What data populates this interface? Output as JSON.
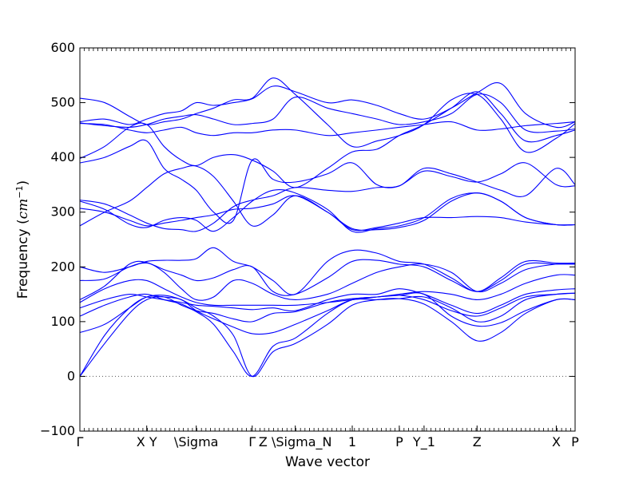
{
  "chart_data": {
    "type": "line",
    "title": "",
    "xlabel": "Wave vector",
    "ylabel": "Frequency ($cm^{-1}$)",
    "ylabel_parts": {
      "main": "Frequency (",
      "unit_cm": "cm",
      "unit_exp": "−1",
      "close": ")"
    },
    "ylim": [
      -100,
      600
    ],
    "yticks": [
      -100,
      0,
      100,
      200,
      300,
      400,
      500,
      600
    ],
    "xlim": [
      0,
      1
    ],
    "high_symmetry_points": [
      {
        "x": 0.0,
        "label": "Γ"
      },
      {
        "x": 0.135,
        "label": "X Y"
      },
      {
        "x": 0.235,
        "label": "\\Sigma"
      },
      {
        "x": 0.348,
        "label": "Γ"
      },
      {
        "x": 0.435,
        "label": "Z \\Sigma_N"
      },
      {
        "x": 0.55,
        "label": "1"
      },
      {
        "x": 0.645,
        "label": "P"
      },
      {
        "x": 0.695,
        "label": "Y_1"
      },
      {
        "x": 0.802,
        "label": "Z"
      },
      {
        "x": 0.962,
        "label": "X"
      },
      {
        "x": 1.0,
        "label": "P"
      }
    ],
    "zero_line": {
      "y": 0,
      "style": "dotted"
    },
    "grid": false,
    "line_color": "#0000ff",
    "series_x": [
      0.0,
      0.05,
      0.1,
      0.135,
      0.17,
      0.205,
      0.235,
      0.27,
      0.31,
      0.348,
      0.39,
      0.435,
      0.5,
      0.55,
      0.6,
      0.645,
      0.695,
      0.75,
      0.802,
      0.85,
      0.9,
      0.962,
      1.0
    ],
    "series": [
      {
        "values": [
          0,
          60,
          115,
          140,
          145,
          130,
          118,
          95,
          45,
          0,
          55,
          70,
          115,
          140,
          145,
          148,
          150,
          110,
          92,
          98,
          120,
          140,
          140
        ]
      },
      {
        "values": [
          0,
          75,
          125,
          145,
          148,
          140,
          125,
          110,
          75,
          0,
          45,
          60,
          95,
          130,
          140,
          142,
          132,
          100,
          65,
          80,
          115,
          140,
          140
        ]
      },
      {
        "values": [
          80,
          95,
          125,
          145,
          145,
          140,
          120,
          105,
          90,
          78,
          80,
          95,
          120,
          140,
          140,
          142,
          145,
          125,
          100,
          110,
          140,
          150,
          152
        ]
      },
      {
        "values": [
          110,
          130,
          145,
          150,
          140,
          132,
          120,
          115,
          105,
          100,
          115,
          118,
          135,
          142,
          145,
          148,
          140,
          120,
          110,
          125,
          145,
          150,
          152
        ]
      },
      {
        "values": [
          125,
          140,
          150,
          145,
          140,
          135,
          130,
          128,
          125,
          122,
          125,
          120,
          140,
          150,
          150,
          160,
          150,
          130,
          115,
          130,
          150,
          158,
          160
        ]
      },
      {
        "values": [
          135,
          160,
          175,
          175,
          160,
          145,
          135,
          130,
          130,
          130,
          130,
          130,
          135,
          140,
          145,
          150,
          155,
          150,
          140,
          150,
          170,
          185,
          185
        ]
      },
      {
        "values": [
          140,
          165,
          205,
          208,
          190,
          160,
          140,
          145,
          175,
          170,
          150,
          140,
          150,
          170,
          190,
          200,
          205,
          190,
          155,
          170,
          195,
          205,
          205
        ]
      },
      {
        "values": [
          175,
          178,
          200,
          207,
          195,
          185,
          175,
          180,
          195,
          200,
          155,
          150,
          180,
          210,
          212,
          205,
          200,
          175,
          155,
          175,
          205,
          205,
          205
        ]
      },
      {
        "values": [
          200,
          190,
          200,
          210,
          212,
          212,
          215,
          235,
          210,
          200,
          175,
          150,
          210,
          230,
          225,
          210,
          205,
          180,
          155,
          180,
          210,
          207,
          207
        ]
      },
      {
        "values": [
          275,
          300,
          320,
          345,
          370,
          380,
          384,
          365,
          320,
          275,
          295,
          330,
          300,
          268,
          272,
          280,
          290,
          290,
          292,
          290,
          282,
          277,
          277
        ]
      },
      {
        "values": [
          307,
          300,
          285,
          275,
          280,
          285,
          290,
          295,
          305,
          307,
          315,
          330,
          300,
          270,
          268,
          272,
          285,
          320,
          335,
          320,
          290,
          277,
          277
        ]
      },
      {
        "values": [
          320,
          305,
          278,
          272,
          285,
          290,
          285,
          265,
          290,
          320,
          340,
          335,
          305,
          265,
          270,
          275,
          290,
          325,
          335,
          320,
          290,
          277,
          277
        ]
      },
      {
        "values": [
          322,
          315,
          295,
          280,
          270,
          268,
          265,
          280,
          310,
          322,
          330,
          345,
          340,
          338,
          345,
          348,
          375,
          365,
          355,
          370,
          390,
          350,
          348
        ]
      },
      {
        "values": [
          390,
          400,
          420,
          430,
          380,
          360,
          340,
          300,
          285,
          395,
          360,
          355,
          370,
          390,
          350,
          348,
          380,
          370,
          355,
          340,
          330,
          380,
          350
        ]
      },
      {
        "values": [
          398,
          420,
          455,
          460,
          420,
          395,
          385,
          400,
          405,
          395,
          375,
          345,
          380,
          410,
          415,
          440,
          460,
          490,
          520,
          480,
          430,
          440,
          450
        ]
      },
      {
        "values": [
          462,
          460,
          450,
          445,
          450,
          455,
          445,
          440,
          445,
          445,
          450,
          450,
          440,
          445,
          450,
          455,
          460,
          465,
          450,
          452,
          458,
          462,
          465
        ]
      },
      {
        "values": [
          463,
          458,
          455,
          460,
          470,
          475,
          478,
          470,
          460,
          462,
          470,
          510,
          490,
          480,
          470,
          460,
          465,
          480,
          515,
          500,
          450,
          448,
          452
        ]
      },
      {
        "values": [
          465,
          470,
          460,
          470,
          480,
          485,
          500,
          495,
          500,
          507,
          530,
          520,
          500,
          505,
          495,
          480,
          470,
          490,
          518,
          535,
          480,
          455,
          465
        ]
      },
      {
        "values": [
          508,
          500,
          475,
          460,
          465,
          470,
          480,
          490,
          505,
          508,
          545,
          515,
          460,
          420,
          430,
          440,
          460,
          505,
          515,
          470,
          410,
          435,
          462
        ]
      }
    ]
  }
}
